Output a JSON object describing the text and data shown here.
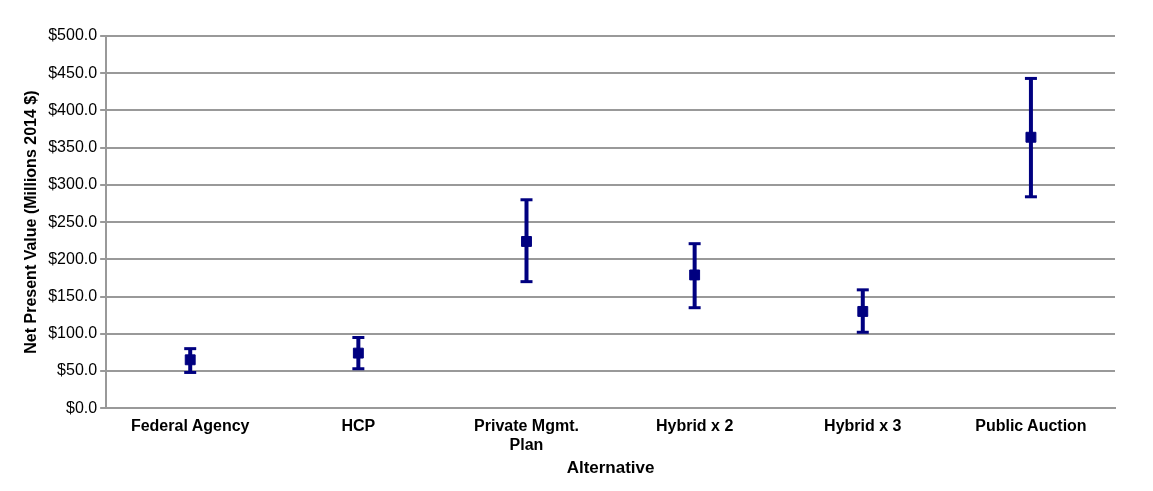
{
  "chart_data": {
    "type": "scatter",
    "xlabel": "Alternative",
    "ylabel": "Net Present Value (Millions 2014 $)",
    "categories": [
      "Federal Agency",
      "HCP",
      "Private Mgmt. Plan",
      "Hybrid x 2",
      "Hybrid x 3",
      "Public Auction"
    ],
    "series": [
      {
        "color": "#000080",
        "values": [
          65,
          74,
          224,
          179,
          130,
          364
        ],
        "errors": [
          [
            48,
            80
          ],
          [
            53,
            95
          ],
          [
            170,
            280
          ],
          [
            135,
            221
          ],
          [
            102,
            159
          ],
          [
            284,
            443
          ]
        ]
      }
    ],
    "ylim": [
      0,
      500
    ],
    "yticks": [
      {
        "value": 0,
        "label": "$0.0"
      },
      {
        "value": 50,
        "label": "$50.0"
      },
      {
        "value": 100,
        "label": "$100.0"
      },
      {
        "value": 150,
        "label": "$150.0"
      },
      {
        "value": 200,
        "label": "$200.0"
      },
      {
        "value": 250,
        "label": "$250.0"
      },
      {
        "value": 300,
        "label": "$300.0"
      },
      {
        "value": 350,
        "label": "$350.0"
      },
      {
        "value": 400,
        "label": "$400.0"
      },
      {
        "value": 450,
        "label": "$450.0"
      },
      {
        "value": 500,
        "label": "$500.0"
      }
    ],
    "grid": "y",
    "legend": false,
    "marker": "square"
  }
}
